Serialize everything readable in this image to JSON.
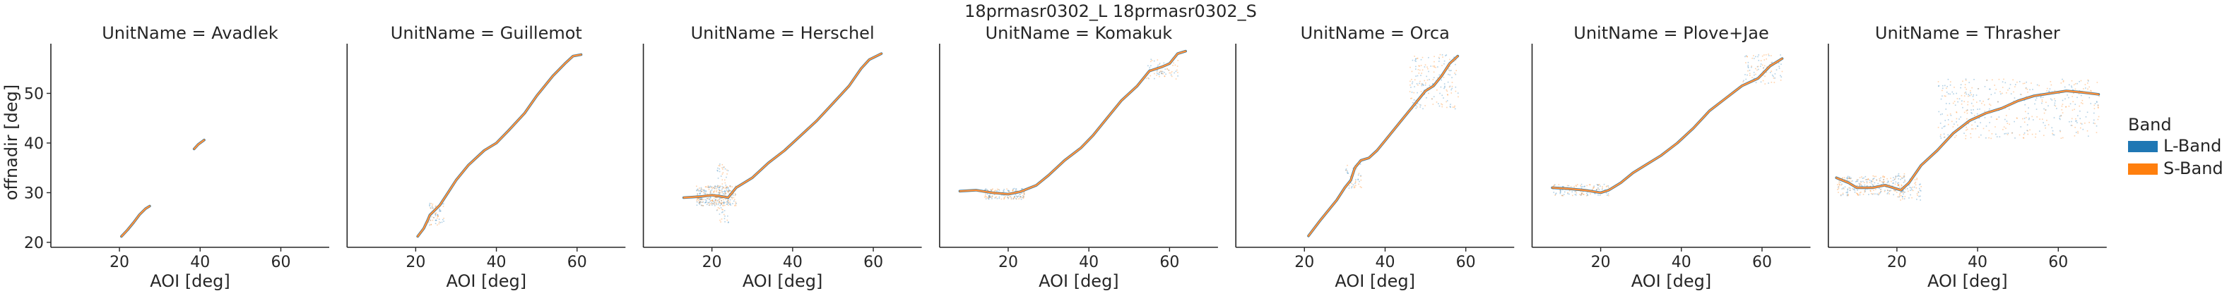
{
  "chart_data": {
    "type": "line",
    "title": "18prmasr0302_L 18prmasr0302_S",
    "xlabel": "AOI [deg]",
    "ylabel": "offnadir [deg]",
    "xlim": [
      3,
      72
    ],
    "ylim": [
      19,
      60
    ],
    "xticks": [
      20,
      40,
      60
    ],
    "yticks": [
      20,
      30,
      40,
      50
    ],
    "grid": false,
    "legend": {
      "title": "Band",
      "placement": "right",
      "entries": [
        {
          "name": "L-Band",
          "color": "#1f77b4"
        },
        {
          "name": "S-Band",
          "color": "#ff7f0e"
        }
      ]
    },
    "facets": [
      {
        "label": "UnitName = Avadlek",
        "segments": [
          [
            [
              20.5,
              21.2
            ],
            [
              22,
              22.5
            ],
            [
              23.5,
              24
            ],
            [
              25,
              25.6
            ],
            [
              26.5,
              26.8
            ],
            [
              27.5,
              27.3
            ]
          ],
          [
            [
              38.5,
              38.8
            ],
            [
              39.5,
              39.7
            ],
            [
              41,
              40.6
            ]
          ]
        ],
        "noise": []
      },
      {
        "label": "UnitName = Guillemot",
        "segments": [
          [
            [
              20.5,
              21.2
            ],
            [
              22,
              22.8
            ],
            [
              23,
              24.5
            ],
            [
              23.5,
              25.5
            ],
            [
              26,
              27.5
            ],
            [
              28,
              30
            ],
            [
              30,
              32.5
            ],
            [
              33,
              35.5
            ],
            [
              37,
              38.5
            ],
            [
              40,
              40
            ],
            [
              43,
              42.5
            ],
            [
              47,
              46
            ],
            [
              50,
              49.5
            ],
            [
              54,
              53.5
            ],
            [
              57,
              56
            ],
            [
              59,
              57.5
            ],
            [
              61,
              57.8
            ]
          ]
        ],
        "noise": [
          [
            23,
            27,
            23.5,
            28,
            2.5
          ]
        ]
      },
      {
        "label": "UnitName = Herschel",
        "segments": [
          [
            [
              13,
              29
            ],
            [
              17,
              29.2
            ],
            [
              20,
              29.5
            ],
            [
              22,
              29.3
            ],
            [
              24,
              29
            ],
            [
              26,
              31
            ],
            [
              30,
              33
            ],
            [
              34,
              36
            ],
            [
              38,
              38.5
            ],
            [
              42,
              41.5
            ],
            [
              46,
              44.5
            ],
            [
              50,
              48
            ],
            [
              54,
              51.5
            ],
            [
              57,
              55
            ],
            [
              59,
              56.8
            ],
            [
              62,
              58
            ]
          ]
        ],
        "noise": [
          [
            16,
            26,
            27.5,
            31.5,
            5
          ],
          [
            21,
            24,
            24,
            36,
            4
          ]
        ]
      },
      {
        "label": "UnitName = Komakuk",
        "segments": [
          [
            [
              8,
              30.3
            ],
            [
              12,
              30.5
            ],
            [
              16,
              30
            ],
            [
              20,
              29.7
            ],
            [
              23,
              30.2
            ],
            [
              27,
              31.5
            ],
            [
              30,
              33.5
            ],
            [
              34,
              36.5
            ],
            [
              38,
              39
            ],
            [
              41,
              41.5
            ],
            [
              44,
              44.5
            ],
            [
              48,
              48.5
            ],
            [
              52,
              51.5
            ],
            [
              55,
              54.5
            ],
            [
              58,
              55.3
            ],
            [
              60,
              56
            ],
            [
              62,
              58
            ],
            [
              64,
              58.5
            ]
          ]
        ],
        "noise": [
          [
            14,
            24,
            28.8,
            31,
            2.5
          ],
          [
            54,
            62,
            53,
            57,
            1.5
          ]
        ]
      },
      {
        "label": "UnitName = Orca",
        "segments": [
          [
            [
              21,
              21.3
            ],
            [
              24,
              24.5
            ],
            [
              28,
              28.5
            ],
            [
              30,
              31
            ],
            [
              31.5,
              32.5
            ],
            [
              32.5,
              35
            ],
            [
              34,
              36.5
            ],
            [
              36,
              37
            ],
            [
              38,
              38.5
            ],
            [
              40,
              40.5
            ],
            [
              42,
              42.5
            ],
            [
              44,
              44.5
            ],
            [
              46,
              46.5
            ],
            [
              48,
              48.5
            ],
            [
              50,
              50.5
            ],
            [
              52,
              51.5
            ],
            [
              54,
              53.5
            ],
            [
              56,
              56
            ],
            [
              58,
              57.5
            ]
          ]
        ],
        "noise": [
          [
            30,
            34,
            31,
            36,
            2
          ],
          [
            46,
            58,
            47,
            58,
            2.5
          ]
        ]
      },
      {
        "label": "UnitName = Plove+Jae",
        "segments": [
          [
            [
              8,
              31
            ],
            [
              12,
              30.8
            ],
            [
              16,
              30.5
            ],
            [
              20,
              30
            ],
            [
              22,
              30.5
            ],
            [
              25,
              32
            ],
            [
              28,
              34
            ],
            [
              31,
              35.5
            ],
            [
              35,
              37.5
            ],
            [
              39,
              40
            ],
            [
              43,
              43
            ],
            [
              47,
              46.5
            ],
            [
              51,
              49
            ],
            [
              55,
              51.5
            ],
            [
              59,
              53
            ],
            [
              62,
              55.5
            ],
            [
              65,
              57
            ]
          ]
        ],
        "noise": [
          [
            8,
            22,
            29.5,
            31.8,
            1.5
          ],
          [
            55,
            65,
            52,
            58,
            1.5
          ]
        ]
      },
      {
        "label": "UnitName = Thrasher",
        "segments": [
          [
            [
              5,
              33
            ],
            [
              8,
              32
            ],
            [
              10,
              31
            ],
            [
              14,
              31
            ],
            [
              17,
              31.5
            ],
            [
              19,
              31
            ],
            [
              21,
              30.5
            ],
            [
              23,
              32
            ],
            [
              26,
              35.5
            ],
            [
              30,
              38.5
            ],
            [
              34,
              42
            ],
            [
              38,
              44.5
            ],
            [
              42,
              46
            ],
            [
              46,
              47
            ],
            [
              50,
              48.5
            ],
            [
              54,
              49.5
            ],
            [
              58,
              50
            ],
            [
              62,
              50.5
            ],
            [
              66,
              50.2
            ],
            [
              70,
              49.8
            ]
          ]
        ],
        "noise": [
          [
            5,
            22,
            29.5,
            33.5,
            2.5
          ],
          [
            20,
            26,
            28.5,
            34,
            2
          ],
          [
            30,
            70,
            41,
            53,
            1.8
          ]
        ]
      }
    ]
  }
}
